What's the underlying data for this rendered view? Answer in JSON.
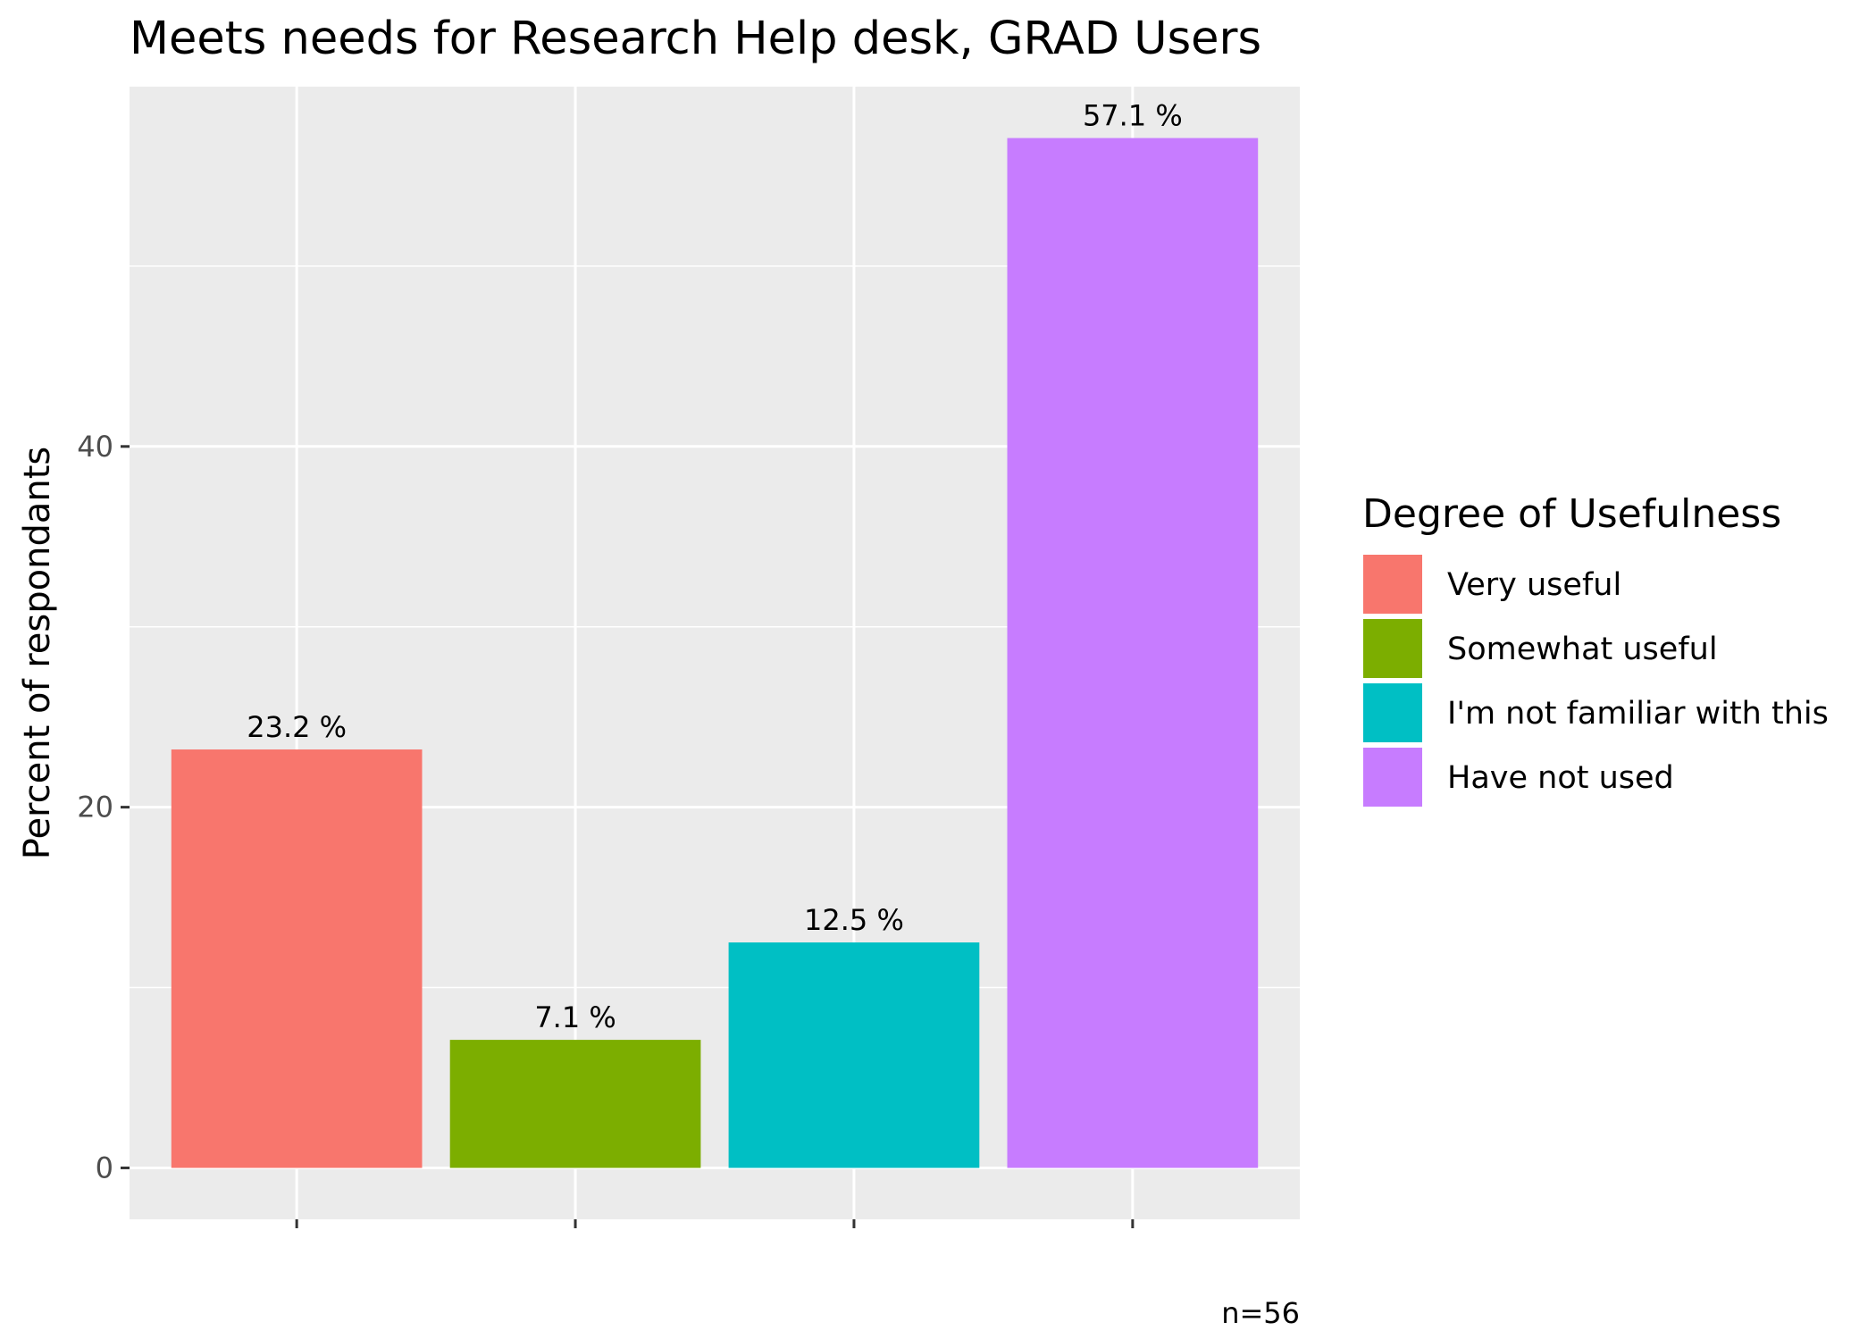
{
  "chart_data": {
    "type": "bar",
    "title": "Meets needs for Research Help desk,  GRAD Users",
    "xlabel": "",
    "ylabel": "Percent of respondants",
    "categories": [
      "Very useful",
      "Somewhat useful",
      "I'm not familiar with this",
      "Have not used"
    ],
    "values": [
      23.2,
      7.1,
      12.5,
      57.1
    ],
    "value_labels": [
      "23.2 %",
      "7.1 %",
      "12.5 %",
      "57.1 %"
    ],
    "colors": [
      "#F8766D",
      "#7CAE00",
      "#00BFC4",
      "#C77CFF"
    ],
    "ylim": [
      -2.85,
      59.95
    ],
    "yticks": [
      0,
      20,
      40
    ],
    "ytick_labels": [
      "0",
      "20",
      "40"
    ],
    "minor_yticks": [
      10,
      30,
      50
    ],
    "grid": true,
    "panel_background": "#EBEBEB",
    "legend": {
      "title": "Degree of Usefulness",
      "position": "right",
      "entries": [
        "Very useful",
        "Somewhat useful",
        "I'm not familiar with this",
        "Have not used"
      ]
    },
    "caption": "n=56"
  }
}
